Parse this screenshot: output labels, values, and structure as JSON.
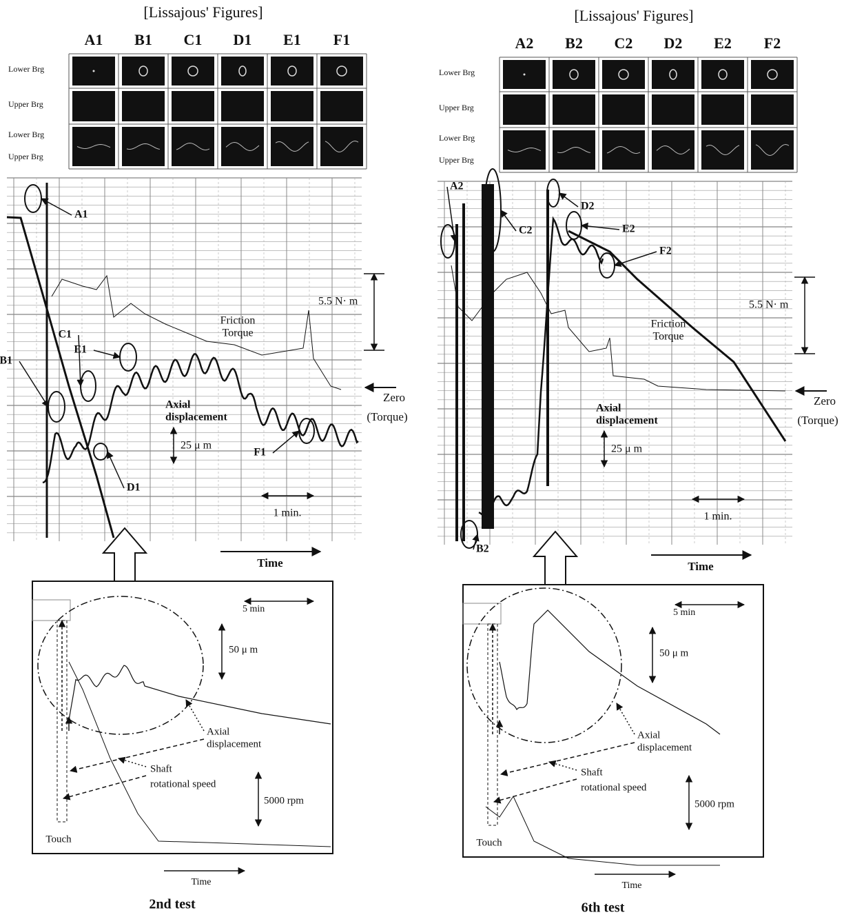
{
  "panels": [
    {
      "lissajous_title": "[Lissajous' Figures]",
      "columns": [
        "A1",
        "B1",
        "C1",
        "D1",
        "E1",
        "F1"
      ],
      "row_labels": [
        "Lower Brg",
        "Upper Brg",
        "Lower Brg",
        "Upper Brg"
      ],
      "chart": {
        "markers": [
          "A1",
          "B1",
          "C1",
          "E1",
          "D1",
          "F1"
        ],
        "torque_scale": "5.5 N· m",
        "friction_label": [
          "Friction",
          "Torque"
        ],
        "axial_label": [
          "Axial",
          "displacement"
        ],
        "disp_scale": "25 μ m",
        "time_scale": "1 min.",
        "time_label": "Time",
        "zero_label": [
          "Zero",
          "(Torque)"
        ]
      },
      "inset": {
        "time_scale": "5 min",
        "disp_scale": "50 μ m",
        "axial_label": [
          "Axial",
          "displacement"
        ],
        "speed_label": [
          "Shaft",
          "rotational speed"
        ],
        "speed_scale": "5000 rpm",
        "touch_label": "Touch",
        "time_label": "Time"
      },
      "caption": "2nd test"
    },
    {
      "lissajous_title": "[Lissajous' Figures]",
      "columns": [
        "A2",
        "B2",
        "C2",
        "D2",
        "E2",
        "F2"
      ],
      "row_labels": [
        "Lower Brg",
        "Upper Brg",
        "Lower Brg",
        "Upper Brg"
      ],
      "chart": {
        "markers": [
          "A2",
          "B2",
          "C2",
          "D2",
          "E2",
          "F2"
        ],
        "torque_scale": "5.5 N· m",
        "friction_label": [
          "Friction",
          "Torque"
        ],
        "axial_label": [
          "Axial",
          "displacement"
        ],
        "disp_scale": "25 μ m",
        "time_scale": "1 min.",
        "time_label": "Time",
        "zero_label": [
          "Zero",
          "(Torque)"
        ]
      },
      "inset": {
        "time_scale": "5 min",
        "disp_scale": "50 μ m",
        "axial_label": [
          "Axial",
          "displacement"
        ],
        "speed_label": [
          "Shaft",
          "rotational speed"
        ],
        "speed_scale": "5000 rpm",
        "touch_label": "Touch",
        "time_label": "Time"
      },
      "caption": "6th test"
    }
  ]
}
